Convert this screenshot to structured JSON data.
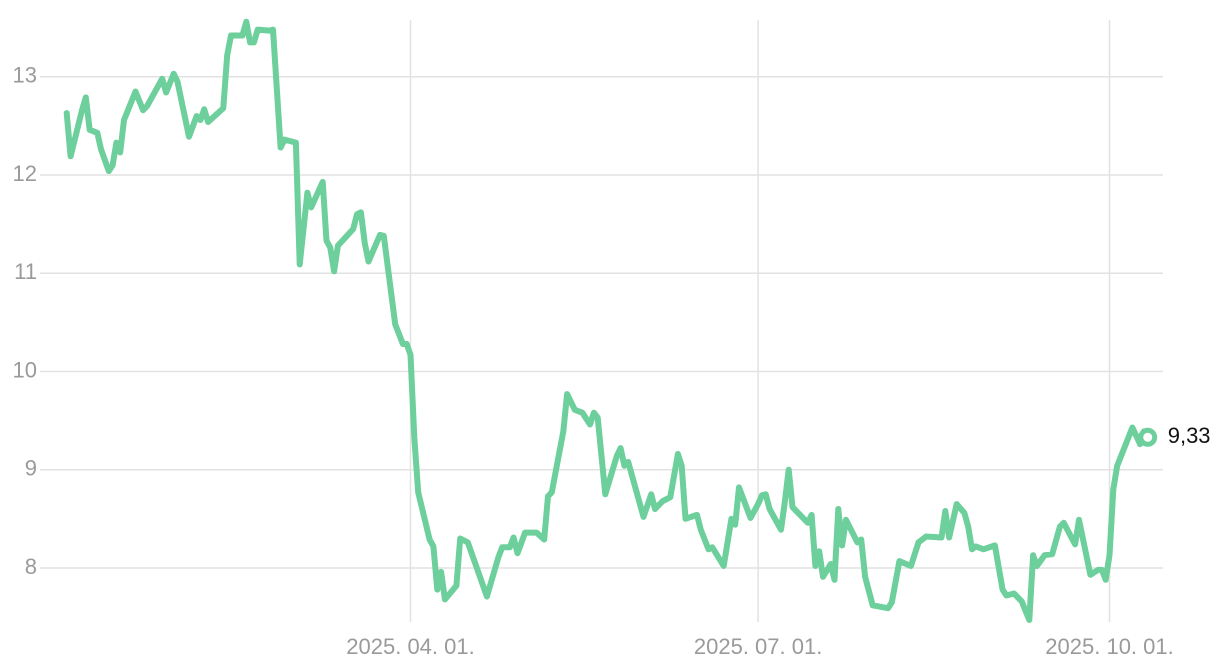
{
  "chart_data": {
    "type": "line",
    "x": [
      "2025-01-01",
      "2025-01-02",
      "2025-01-05",
      "2025-01-06",
      "2025-01-07",
      "2025-01-09",
      "2025-01-10",
      "2025-01-12",
      "2025-01-13",
      "2025-01-14",
      "2025-01-15",
      "2025-01-16",
      "2025-01-19",
      "2025-01-21",
      "2025-01-22",
      "2025-01-24",
      "2025-01-26",
      "2025-01-27",
      "2025-01-29",
      "2025-01-30",
      "2025-02-02",
      "2025-02-04",
      "2025-02-05",
      "2025-02-06",
      "2025-02-07",
      "2025-02-11",
      "2025-02-12",
      "2025-02-13",
      "2025-02-16",
      "2025-02-17",
      "2025-02-18",
      "2025-02-19",
      "2025-02-20",
      "2025-02-23",
      "2025-02-24",
      "2025-02-26",
      "2025-02-27",
      "2025-03-02",
      "2025-03-03",
      "2025-03-05",
      "2025-03-06",
      "2025-03-09",
      "2025-03-10",
      "2025-03-11",
      "2025-03-12",
      "2025-03-13",
      "2025-03-17",
      "2025-03-18",
      "2025-03-19",
      "2025-03-20",
      "2025-03-21",
      "2025-03-24",
      "2025-03-25",
      "2025-03-28",
      "2025-03-30",
      "2025-03-31",
      "2025-04-01",
      "2025-04-02",
      "2025-04-03",
      "2025-04-06",
      "2025-04-07",
      "2025-04-08",
      "2025-04-09",
      "2025-04-10",
      "2025-04-13",
      "2025-04-14",
      "2025-04-16",
      "2025-04-21",
      "2025-04-24",
      "2025-04-25",
      "2025-04-27",
      "2025-04-28",
      "2025-04-29",
      "2025-05-01",
      "2025-05-04",
      "2025-05-06",
      "2025-05-07",
      "2025-05-08",
      "2025-05-11",
      "2025-05-12",
      "2025-05-14",
      "2025-05-16",
      "2025-05-18",
      "2025-05-19",
      "2025-05-20",
      "2025-05-22",
      "2025-05-25",
      "2025-05-26",
      "2025-05-27",
      "2025-05-28",
      "2025-06-01",
      "2025-06-03",
      "2025-06-04",
      "2025-06-06",
      "2025-06-08",
      "2025-06-10",
      "2025-06-11",
      "2025-06-12",
      "2025-06-15",
      "2025-06-16",
      "2025-06-18",
      "2025-06-19",
      "2025-06-22",
      "2025-06-24",
      "2025-06-25",
      "2025-06-26",
      "2025-06-29",
      "2025-07-01",
      "2025-07-02",
      "2025-07-03",
      "2025-07-04",
      "2025-07-07",
      "2025-07-08",
      "2025-07-09",
      "2025-07-10",
      "2025-07-14",
      "2025-07-15",
      "2025-07-16",
      "2025-07-17",
      "2025-07-18",
      "2025-07-20",
      "2025-07-21",
      "2025-07-22",
      "2025-07-23",
      "2025-07-24",
      "2025-07-27",
      "2025-07-28",
      "2025-07-29",
      "2025-07-31",
      "2025-08-04",
      "2025-08-05",
      "2025-08-07",
      "2025-08-10",
      "2025-08-12",
      "2025-08-14",
      "2025-08-18",
      "2025-08-19",
      "2025-08-20",
      "2025-08-22",
      "2025-08-24",
      "2025-08-25",
      "2025-08-26",
      "2025-08-27",
      "2025-08-29",
      "2025-09-01",
      "2025-09-03",
      "2025-09-04",
      "2025-09-06",
      "2025-09-08",
      "2025-09-10",
      "2025-09-11",
      "2025-09-12",
      "2025-09-14",
      "2025-09-16",
      "2025-09-18",
      "2025-09-19",
      "2025-09-22",
      "2025-09-23",
      "2025-09-26",
      "2025-09-28",
      "2025-09-29",
      "2025-09-30",
      "2025-10-01",
      "2025-10-02",
      "2025-10-03",
      "2025-10-07",
      "2025-10-09",
      "2025-10-10",
      "2025-10-11"
    ],
    "values": [
      12.63,
      12.19,
      12.66,
      12.79,
      12.46,
      12.43,
      12.26,
      12.04,
      12.1,
      12.33,
      12.23,
      12.56,
      12.85,
      12.66,
      12.7,
      12.84,
      12.98,
      12.84,
      13.03,
      12.95,
      12.39,
      12.6,
      12.56,
      12.67,
      12.54,
      12.68,
      13.22,
      13.42,
      13.42,
      13.56,
      13.35,
      13.35,
      13.48,
      13.47,
      13.48,
      12.28,
      12.36,
      12.33,
      11.09,
      11.82,
      11.67,
      11.93,
      11.33,
      11.26,
      11.02,
      11.28,
      11.45,
      11.6,
      11.62,
      11.31,
      11.12,
      11.39,
      11.38,
      10.48,
      10.28,
      10.28,
      10.17,
      9.33,
      8.77,
      8.29,
      8.22,
      7.78,
      7.96,
      7.68,
      7.82,
      8.3,
      8.26,
      7.71,
      8.11,
      8.21,
      8.21,
      8.31,
      8.15,
      8.36,
      8.36,
      8.29,
      8.73,
      8.77,
      9.39,
      9.77,
      9.61,
      9.58,
      9.46,
      9.58,
      9.53,
      8.75,
      9.14,
      9.22,
      9.04,
      9.08,
      8.52,
      8.75,
      8.6,
      8.68,
      8.72,
      9.16,
      9.04,
      8.5,
      8.54,
      8.39,
      8.19,
      8.21,
      8.02,
      8.5,
      8.44,
      8.82,
      8.51,
      8.65,
      8.74,
      8.75,
      8.6,
      8.39,
      8.67,
      9.0,
      8.62,
      8.46,
      8.54,
      8.02,
      8.17,
      7.91,
      8.04,
      7.88,
      8.6,
      8.23,
      8.49,
      8.26,
      8.29,
      7.91,
      7.62,
      7.59,
      7.65,
      8.07,
      8.02,
      8.26,
      8.32,
      8.31,
      8.58,
      8.31,
      8.65,
      8.56,
      8.42,
      8.19,
      8.22,
      8.19,
      8.23,
      7.78,
      7.72,
      7.74,
      7.66,
      7.47,
      8.13,
      8.02,
      8.13,
      8.14,
      8.42,
      8.46,
      8.24,
      8.49,
      7.93,
      7.98,
      7.98,
      7.88,
      8.13,
      8.8,
      9.04,
      9.43,
      9.26,
      9.39,
      9.33
    ],
    "last_value_label": "9,33",
    "color": "#6dcf9b",
    "xlim": [
      "2024-12-25",
      "2025-10-15"
    ],
    "xticks": [
      {
        "value": "2025-04-01",
        "label": "2025. 04. 01."
      },
      {
        "value": "2025-07-01",
        "label": "2025. 07. 01."
      },
      {
        "value": "2025-10-01",
        "label": "2025. 10. 01."
      }
    ],
    "ylim": [
      7.45,
      13.7
    ],
    "yticks": [
      8,
      9,
      10,
      11,
      12,
      13
    ],
    "grid": true
  }
}
